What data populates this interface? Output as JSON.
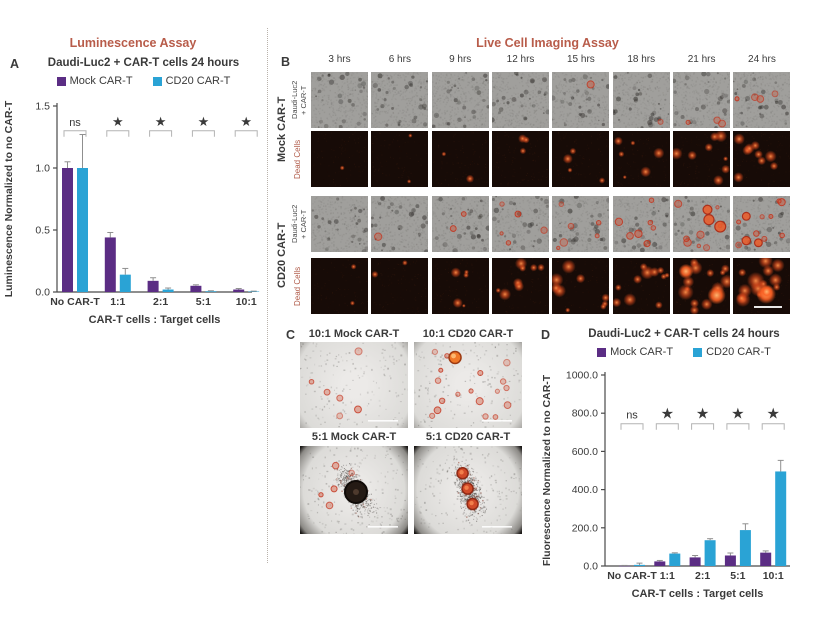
{
  "colors": {
    "mock_purple": "#5b2d84",
    "cd20_blue": "#2aa3d5",
    "section_title_rust": "#b85c4a",
    "dead_cells_rust": "#b05a48",
    "text": "#3a3a3a",
    "error_bar": "#8f8f8f",
    "bracket": "#b3b3b3"
  },
  "panel_a": {
    "label": "A",
    "section_title": "Luminescence Assay",
    "title": "Daudi-Luc2 + CAR-T cells 24 hours",
    "legend": [
      "Mock CAR-T",
      "CD20 CAR-T"
    ]
  },
  "panel_b": {
    "label": "B",
    "section_title": "Live Cell Imaging Assay",
    "timepoints": [
      "3 hrs",
      "6 hrs",
      "9 hrs",
      "12 hrs",
      "15 hrs",
      "18 hrs",
      "21 hrs",
      "24 hrs"
    ],
    "groups": [
      {
        "name": "Mock CAR-T",
        "rows": [
          {
            "label": "Daudi-Luc2 + CAR-T",
            "label_lines": [
              "Daudi-Luc2",
              "+ CAR-T"
            ],
            "type": "brightfield",
            "red_levels": [
              0,
              0,
              0,
              0.04,
              0.08,
              0.15,
              0.3,
              0.45
            ],
            "scale_bar_last": false
          },
          {
            "label": "Dead Cells",
            "type": "fluorescence",
            "red_levels": [
              0.02,
              0.04,
              0.08,
              0.15,
              0.25,
              0.35,
              0.5,
              0.6
            ],
            "scale_bar_last": false
          }
        ]
      },
      {
        "name": "CD20 CAR-T",
        "rows": [
          {
            "label": "Daudi-Luc2 + CAR-T",
            "label_lines": [
              "Daudi-Luc2",
              "+ CAR-T"
            ],
            "type": "brightfield",
            "red_levels": [
              0.05,
              0.08,
              0.18,
              0.5,
              0.65,
              0.75,
              0.9,
              1.0
            ],
            "scale_bar_last": false
          },
          {
            "label": "Dead Cells",
            "type": "fluorescence",
            "red_levels": [
              0.04,
              0.1,
              0.3,
              0.5,
              0.65,
              0.75,
              0.9,
              1.0
            ],
            "scale_bar_last": true
          }
        ]
      }
    ]
  },
  "panel_c": {
    "label": "C",
    "images": [
      {
        "title": "10:1 Mock CAR-T",
        "spots": 6,
        "big_orange": false,
        "cluster": false,
        "bubble": false,
        "big_red": 0
      },
      {
        "title": "10:1 CD20 CAR-T",
        "spots": 18,
        "big_orange": true,
        "cluster": false,
        "bubble": false,
        "big_red": 0
      },
      {
        "title": "5:1 Mock CAR-T",
        "spots": 5,
        "big_orange": false,
        "cluster": true,
        "bubble": true,
        "big_red": 0
      },
      {
        "title": "5:1 CD20 CAR-T",
        "spots": 0,
        "big_orange": false,
        "cluster": true,
        "bubble": false,
        "big_red": 3
      }
    ]
  },
  "panel_d": {
    "label": "D",
    "title": "Daudi-Luc2 + CAR-T cells 24 hours",
    "legend": [
      "Mock CAR-T",
      "CD20 CAR-T"
    ]
  },
  "chart_data": [
    {
      "id": "panel_a_chart",
      "type": "bar",
      "title": "Daudi-Luc2 + CAR-T cells 24 hours",
      "categories": [
        "No CAR-T",
        "1:1",
        "2:1",
        "5:1",
        "10:1"
      ],
      "series": [
        {
          "name": "Mock CAR-T",
          "color": "#5b2d84",
          "values": [
            1.0,
            0.44,
            0.09,
            0.05,
            0.02
          ],
          "errors": [
            0.05,
            0.04,
            0.025,
            0.008,
            0.008
          ]
        },
        {
          "name": "CD20 CAR-T",
          "color": "#2aa3d5",
          "values": [
            1.0,
            0.14,
            0.02,
            0.006,
            0.004
          ],
          "errors": [
            0.27,
            0.05,
            0.012,
            0.004,
            0.003
          ]
        }
      ],
      "significance": [
        "ns",
        "★",
        "★",
        "★",
        "★"
      ],
      "xlabel": "CAR-T cells : Target cells",
      "ylabel": "Luminescence Normalized to no CAR-T",
      "ylim": [
        0,
        1.5
      ],
      "yticks": [
        {
          "v": 0.0,
          "label": "0.0"
        },
        {
          "v": 0.5,
          "label": "0.5"
        },
        {
          "v": 1.0,
          "label": "1.0"
        },
        {
          "v": 1.5,
          "label": "1.5"
        }
      ],
      "grid": false,
      "legend_position": "top"
    },
    {
      "id": "panel_d_chart",
      "type": "bar",
      "title": "Daudi-Luc2 + CAR-T cells 24 hours",
      "categories": [
        "No CAR-T",
        "1:1",
        "2:1",
        "5:1",
        "10:1"
      ],
      "series": [
        {
          "name": "Mock CAR-T",
          "color": "#5b2d84",
          "values": [
            1,
            24,
            45,
            55,
            70
          ],
          "errors": [
            2,
            5,
            10,
            13,
            9
          ]
        },
        {
          "name": "CD20 CAR-T",
          "color": "#2aa3d5",
          "values": [
            6,
            65,
            135,
            188,
            495
          ],
          "errors": [
            9,
            4,
            8,
            33,
            58
          ]
        }
      ],
      "significance": [
        "ns",
        "★",
        "★",
        "★",
        "★"
      ],
      "xlabel": "CAR-T cells : Target cells",
      "ylabel": "Fluorescence Normalized to no CAR-T",
      "ylim": [
        0,
        1000
      ],
      "yticks": [
        {
          "v": 0,
          "label": "0.0"
        },
        {
          "v": 200,
          "label": "200.0"
        },
        {
          "v": 400,
          "label": "400.0"
        },
        {
          "v": 600,
          "label": "600.0"
        },
        {
          "v": 800,
          "label": "800.0"
        },
        {
          "v": 1000,
          "label": "1000.0"
        }
      ],
      "grid": false,
      "legend_position": "top"
    }
  ]
}
